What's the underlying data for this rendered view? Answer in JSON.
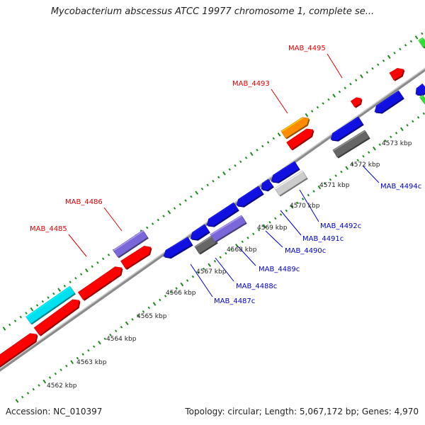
{
  "title": "Mycobacterium abscessus ATCC 19977 chromosome 1, complete se...",
  "footer": {
    "accession": "Accession: NC_010397",
    "summary": "Topology: circular; Length: 5,067,172 bp; Genes: 4,970"
  },
  "colors": {
    "forward_label": "#dd0000",
    "reverse_label": "#0000cc",
    "backbone": "#888888",
    "tick": "#1e8a1e",
    "red": "#ff0000",
    "orange": "#ff8c00",
    "blue": "#1010e0",
    "lavender": "#7b68d8",
    "gray": "#666666",
    "lightgray": "#cccccc",
    "cyan": "#00e0f0",
    "green": "#33dd33"
  },
  "scale_labels": [
    "4562 kbp",
    "4563 kbp",
    "4564 kbp",
    "4565 kbp",
    "4566 kbp",
    "4567 kbp",
    "4568 kbp",
    "4569 kbp",
    "4570 kbp",
    "4571 kbp",
    "4572 kbp",
    "4573 kbp"
  ],
  "forward_gene_labels": [
    "MAB_4485",
    "MAB_4486",
    "MAB_4493",
    "MAB_4495"
  ],
  "reverse_gene_labels": [
    "MAB_4487c",
    "MAB_4488c",
    "MAB_4489c",
    "MAB_4490c",
    "MAB_4491c",
    "MAB_4492c",
    "MAB_4494c"
  ]
}
